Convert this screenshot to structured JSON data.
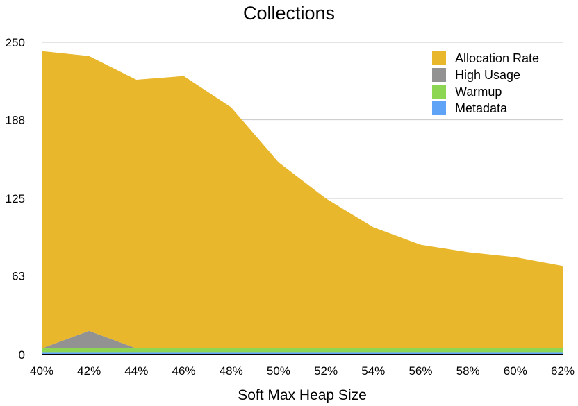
{
  "chart_data": {
    "type": "area",
    "stacked": true,
    "title": "Collections",
    "xlabel": "Soft Max Heap Size",
    "ylabel": "",
    "categories": [
      "40%",
      "42%",
      "44%",
      "46%",
      "48%",
      "50%",
      "52%",
      "54%",
      "56%",
      "58%",
      "60%",
      "62%"
    ],
    "yticks": [
      "0",
      "63",
      "125",
      "188",
      "250"
    ],
    "ylim": [
      0,
      250
    ],
    "grid": true,
    "legend_position": "top-right",
    "series": [
      {
        "name": "Metadata",
        "color": "#5ea3f5",
        "values": [
          2,
          2,
          2,
          2,
          2,
          2,
          2,
          2,
          2,
          2,
          2,
          2
        ]
      },
      {
        "name": "Warmup",
        "color": "#8cd653",
        "values": [
          3,
          3,
          3,
          3,
          3,
          3,
          3,
          3,
          3,
          3,
          3,
          3
        ]
      },
      {
        "name": "High Usage",
        "color": "#929292",
        "values": [
          0,
          14,
          0,
          0,
          0,
          0,
          0,
          0,
          0,
          0,
          0,
          0
        ]
      },
      {
        "name": "Allocation Rate",
        "color": "#e8b72c",
        "values": [
          238,
          220,
          215,
          218,
          193,
          149,
          120,
          97,
          83,
          77,
          73,
          66
        ]
      }
    ],
    "legend_order": [
      "Allocation Rate",
      "High Usage",
      "Warmup",
      "Metadata"
    ]
  }
}
